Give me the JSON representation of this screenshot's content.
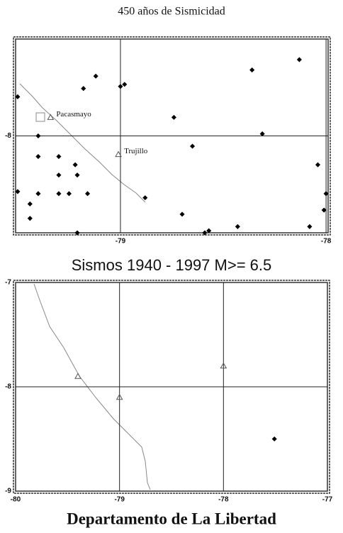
{
  "chart_data": [
    {
      "type": "scatter",
      "title": "450 años de Sismicidad",
      "x": [
        -79.5,
        -79.4,
        -79.4,
        -79.4,
        -79.44,
        -79.44,
        -79.3,
        -79.3,
        -79.3,
        -79.25,
        -79.22,
        -79.21,
        -79.16,
        -79.18,
        -79.12,
        -79.0,
        -78.98,
        -78.88,
        -78.74,
        -78.7,
        -78.65,
        -78.59,
        -78.57,
        -78.43,
        -78.36,
        -78.31,
        -78.13,
        -78.08,
        -78.04,
        -78.01,
        -78.0,
        -79.21,
        -79.5
      ],
      "y": [
        -7.81,
        -8.0,
        -8.1,
        -8.28,
        -8.33,
        -8.4,
        -8.1,
        -8.19,
        -8.28,
        -8.28,
        -8.14,
        -8.19,
        -8.28,
        -7.77,
        -7.71,
        -7.76,
        -7.75,
        -8.3,
        -7.91,
        -8.38,
        -8.05,
        -8.47,
        -8.46,
        -8.44,
        -7.68,
        -7.99,
        -7.63,
        -8.44,
        -8.14,
        -8.36,
        -8.28,
        -8.47,
        -8.27
      ],
      "color": "#000000",
      "xlim": [
        -79.51,
        -77.99
      ],
      "ylim": [
        -8.47,
        -7.53
      ],
      "xticks": [
        -79,
        -78
      ],
      "yticks": [
        -8
      ],
      "grid": true,
      "towns": {
        "names": [
          "Pacasmayo",
          "Trujillo"
        ],
        "x": [
          -79.34,
          -79.01
        ],
        "y": [
          -7.91,
          -8.09
        ]
      }
    },
    {
      "type": "scatter",
      "title": "Sismos 1940 - 1997 M>= 6.5",
      "x": [
        -77.51
      ],
      "y": [
        -8.5
      ],
      "color": "#000000",
      "xlim": [
        -80,
        -77
      ],
      "ylim": [
        -9,
        -7
      ],
      "xticks": [
        -80,
        -79,
        -78,
        -77
      ],
      "yticks": [
        -9,
        -8,
        -7
      ],
      "grid": true,
      "towns": {
        "x": [
          -79.4,
          -79.0,
          -78.0
        ],
        "y": [
          -7.9,
          -8.1,
          -7.8
        ]
      }
    }
  ],
  "footer": "Departamento de La Libertad"
}
